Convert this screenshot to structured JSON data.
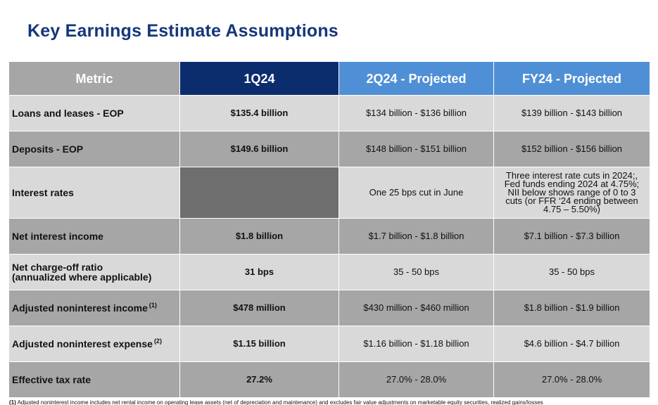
{
  "title": "Key Earnings Estimate Assumptions",
  "headers": {
    "metric": "Metric",
    "q1": "1Q24",
    "q2": "2Q24 - Projected",
    "fy": "FY24 - Projected"
  },
  "rows": [
    {
      "metric": "Loans and leases - EOP",
      "note": "",
      "q1": "$135.4 billion",
      "q2": "$134 billion - $136 billion",
      "fy": "$139 billion - $143 billion"
    },
    {
      "metric": "Deposits - EOP",
      "note": "",
      "q1": "$149.6 billion",
      "q2": "$148 billion - $151 billion",
      "fy": "$152 billion - $156 billion"
    },
    {
      "metric": "Interest rates",
      "note": "",
      "q1": "",
      "q2": "One 25 bps cut in June",
      "fy": "Three interest rate cuts in 2024;, Fed funds ending 2024 at 4.75%; NII below shows range of 0 to 3 cuts (or FFR ‘24 ending between 4.75 – 5.50%)"
    },
    {
      "metric": "Net interest income",
      "note": "",
      "q1": "$1.8 billion",
      "q2": "$1.7 billion - $1.8 billion",
      "fy": "$7.1 billion - $7.3 billion"
    },
    {
      "metric": "Net charge-off ratio (annualized where applicable)",
      "metric_line1": "Net charge-off ratio",
      "metric_line2": "(annualized where applicable)",
      "note": "",
      "q1": "31 bps",
      "q2": "35 - 50 bps",
      "fy": "35 - 50 bps"
    },
    {
      "metric": "Adjusted noninterest income",
      "note": "(1)",
      "q1": "$478 million",
      "q2": "$430 million - $460 million",
      "fy": "$1.8 billion - $1.9 billion"
    },
    {
      "metric": "Adjusted noninterest expense",
      "note": "(2)",
      "q1": "$1.15 billion",
      "q2": "$1.16 billion - $1.18 billion",
      "fy": "$4.6 billion - $4.7 billion"
    },
    {
      "metric": "Effective tax rate",
      "note": "",
      "q1": "27.2%",
      "q2": "27.0% - 28.0%",
      "fy": "27.0% - 28.0%"
    }
  ],
  "footnote": {
    "marker": "(1)",
    "text": "Adjusted noninterest income includes net rental income on operating lease assets (net of depreciation and maintenance) and excludes fair value adjustments on marketable equity securities, realized gains/losses"
  },
  "colors": {
    "title": "#14377a",
    "header_metric": "#a6a6a6",
    "header_q1": "#0b2d6e",
    "header_projected": "#4f8fd6",
    "row_light": "#d9d9d9",
    "row_dark": "#a6a6a6",
    "interest_rates_q1_cell": "#6e6e6e"
  }
}
